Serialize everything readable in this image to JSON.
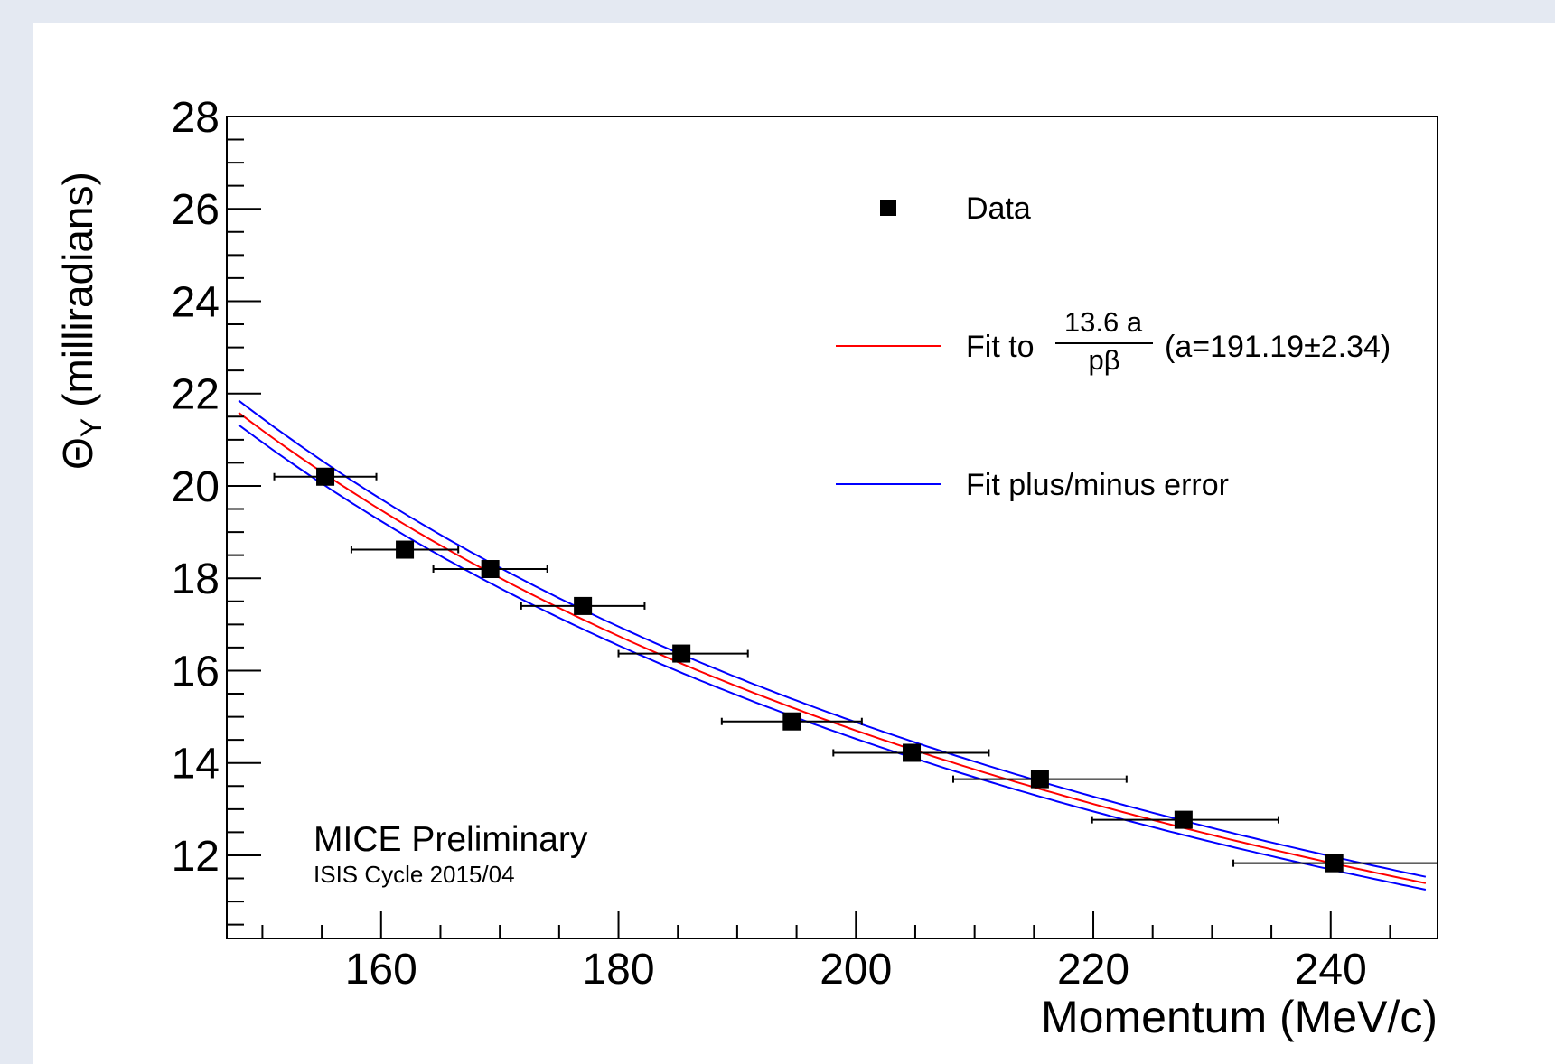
{
  "chart_data": {
    "type": "scatter",
    "xlabel": "Momentum (MeV/c)",
    "ylabel": "(milliradians)",
    "ylabel_symbol": "Θ",
    "ylabel_subscript": "Y",
    "xlim": [
      147,
      249
    ],
    "ylim": [
      10.2,
      28
    ],
    "x_ticks": [
      160,
      180,
      200,
      220,
      240
    ],
    "y_ticks": [
      12,
      14,
      16,
      18,
      20,
      22,
      24,
      26,
      28
    ],
    "grid": false,
    "legend_position": "top-right",
    "series": [
      {
        "name": "Data",
        "marker": "square",
        "color": "#000000",
        "points": [
          {
            "x": 155.3,
            "y": 20.2,
            "xerr": [
              151.0,
              159.6
            ]
          },
          {
            "x": 162.0,
            "y": 18.62,
            "xerr": [
              157.5,
              166.5
            ]
          },
          {
            "x": 169.2,
            "y": 18.2,
            "xerr": [
              164.4,
              174.0
            ]
          },
          {
            "x": 177.0,
            "y": 17.4,
            "xerr": [
              171.8,
              182.2
            ]
          },
          {
            "x": 185.3,
            "y": 16.37,
            "xerr": [
              180.0,
              190.9
            ]
          },
          {
            "x": 194.6,
            "y": 14.9,
            "xerr": [
              188.7,
              200.5
            ]
          },
          {
            "x": 204.7,
            "y": 14.22,
            "xerr": [
              198.1,
              211.2
            ]
          },
          {
            "x": 215.5,
            "y": 13.65,
            "xerr": [
              208.2,
              222.8
            ]
          },
          {
            "x": 227.6,
            "y": 12.77,
            "xerr": [
              219.9,
              235.6
            ]
          },
          {
            "x": 240.3,
            "y": 11.83,
            "xerr": [
              231.8,
              249.0
            ]
          }
        ]
      },
      {
        "name": "Fit to",
        "formula_numerator": "13.6 a",
        "formula_denominator": "pβ",
        "parameter_text": "(a=191.19±2.34)",
        "fit_a": 191.19,
        "fit_a_err": 2.34,
        "color": "#ff0000"
      },
      {
        "name": "Fit plus/minus error",
        "color": "#0000ff"
      }
    ],
    "annotations": [
      "MICE Preliminary",
      "ISIS Cycle 2015/04"
    ]
  }
}
